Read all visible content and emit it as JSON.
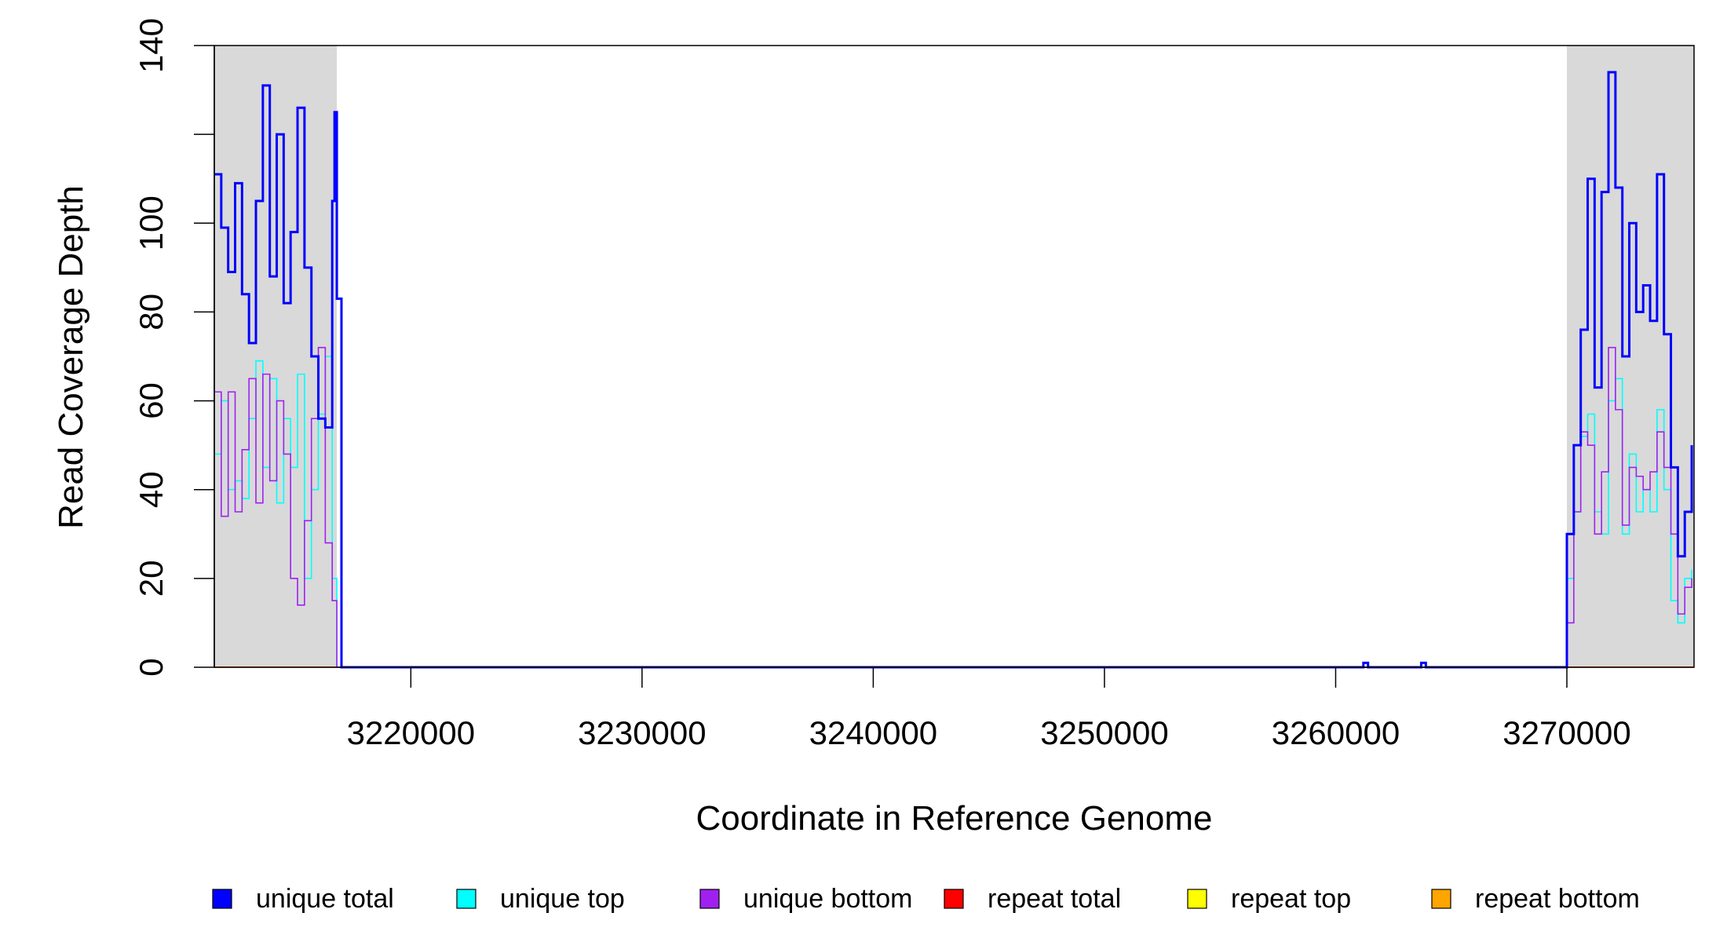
{
  "chart_data": {
    "type": "line",
    "title": "",
    "xlabel": "Coordinate in Reference Genome",
    "ylabel": "Read Coverage Depth",
    "xlim": [
      3211500,
      3275500
    ],
    "ylim": [
      0,
      140
    ],
    "x_ticks": [
      3220000,
      3230000,
      3240000,
      3250000,
      3260000,
      3270000
    ],
    "x_tick_labels": [
      "3220000",
      "3230000",
      "3240000",
      "3250000",
      "3260000",
      "3270000"
    ],
    "y_ticks": [
      0,
      20,
      40,
      60,
      80,
      100,
      120,
      140
    ],
    "y_tick_labels": [
      "0",
      "20",
      "40",
      "60",
      "80",
      "100",
      "",
      "140"
    ],
    "shaded_regions": [
      [
        3211500,
        3216800
      ],
      [
        3270000,
        3275500
      ]
    ],
    "shade_color": "#d9d9d9",
    "legend_position": "bottom",
    "series": [
      {
        "name": "unique total",
        "color": "#0000ff",
        "x": [
          3211500,
          3211800,
          3212100,
          3212400,
          3212700,
          3213000,
          3213300,
          3213600,
          3213900,
          3214200,
          3214500,
          3214800,
          3215100,
          3215400,
          3215700,
          3216000,
          3216300,
          3216600,
          3216700,
          3216800,
          3217000,
          3261000,
          3261200,
          3261400,
          3263500,
          3263700,
          3263900,
          3269900,
          3270000,
          3270300,
          3270600,
          3270900,
          3271200,
          3271500,
          3271800,
          3272100,
          3272400,
          3272700,
          3273000,
          3273300,
          3273600,
          3273900,
          3274200,
          3274500,
          3274800,
          3275100,
          3275400
        ],
        "values": [
          111,
          99,
          89,
          109,
          84,
          73,
          105,
          131,
          88,
          120,
          82,
          98,
          126,
          90,
          70,
          56,
          54,
          105,
          125,
          83,
          0,
          0,
          1,
          0,
          0,
          1,
          0,
          0,
          30,
          50,
          76,
          110,
          63,
          107,
          134,
          108,
          70,
          100,
          80,
          86,
          78,
          111,
          75,
          45,
          25,
          35,
          50
        ]
      },
      {
        "name": "unique top",
        "color": "#00ffff",
        "x": [
          3211500,
          3211800,
          3212100,
          3212400,
          3212700,
          3213000,
          3213300,
          3213600,
          3213900,
          3214200,
          3214500,
          3214800,
          3215100,
          3215400,
          3215700,
          3216000,
          3216300,
          3216600,
          3216800,
          3217000,
          3269900,
          3270000,
          3270300,
          3270600,
          3270900,
          3271200,
          3271500,
          3271800,
          3272100,
          3272400,
          3272700,
          3273000,
          3273300,
          3273600,
          3273900,
          3274200,
          3274500,
          3274800,
          3275100,
          3275400
        ],
        "values": [
          48,
          60,
          40,
          42,
          38,
          56,
          69,
          45,
          65,
          37,
          56,
          45,
          66,
          20,
          40,
          57,
          70,
          20,
          0,
          0,
          0,
          20,
          35,
          52,
          57,
          35,
          30,
          60,
          65,
          30,
          48,
          35,
          40,
          35,
          58,
          40,
          15,
          10,
          20,
          22
        ]
      },
      {
        "name": "unique bottom",
        "color": "#a020f0",
        "x": [
          3211500,
          3211800,
          3212100,
          3212400,
          3212700,
          3213000,
          3213300,
          3213600,
          3213900,
          3214200,
          3214500,
          3214800,
          3215100,
          3215400,
          3215700,
          3216000,
          3216300,
          3216600,
          3216800,
          3217000,
          3269900,
          3270000,
          3270300,
          3270600,
          3270900,
          3271200,
          3271500,
          3271800,
          3272100,
          3272400,
          3272700,
          3273000,
          3273300,
          3273600,
          3273900,
          3274200,
          3274500,
          3274800,
          3275100,
          3275400
        ],
        "values": [
          62,
          34,
          62,
          35,
          49,
          65,
          37,
          66,
          42,
          60,
          48,
          20,
          14,
          33,
          56,
          72,
          28,
          15,
          0,
          0,
          0,
          10,
          35,
          53,
          50,
          30,
          44,
          72,
          58,
          32,
          45,
          43,
          40,
          44,
          53,
          45,
          30,
          12,
          18,
          20
        ]
      },
      {
        "name": "repeat total",
        "color": "#ff0000",
        "x": [
          3211500,
          3275500
        ],
        "values": [
          0,
          0
        ]
      },
      {
        "name": "repeat top",
        "color": "#ffff00",
        "x": [
          3211500,
          3275500
        ],
        "values": [
          0,
          0
        ]
      },
      {
        "name": "repeat bottom",
        "color": "#ffa500",
        "x": [
          3211500,
          3275500
        ],
        "values": [
          0,
          0
        ]
      }
    ]
  }
}
